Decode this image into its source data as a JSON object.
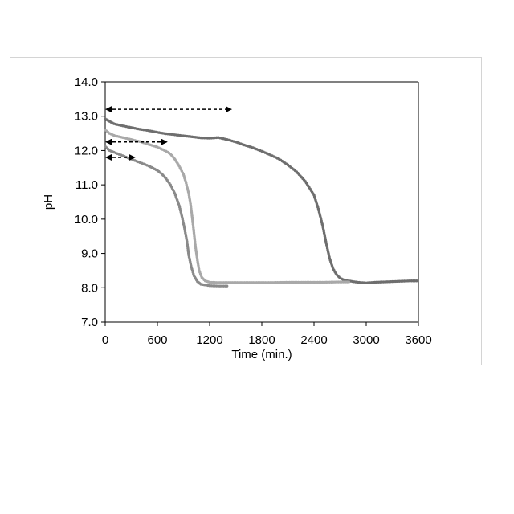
{
  "chart_data": {
    "type": "scatter",
    "title": "",
    "xlabel": "Time (min.)",
    "ylabel": "pH",
    "xlim": [
      0,
      3600
    ],
    "ylim": [
      7.0,
      14.0
    ],
    "x_ticks": [
      "0",
      "600",
      "1200",
      "1800",
      "2400",
      "3000",
      "3600"
    ],
    "y_ticks": [
      "7.0",
      "8.0",
      "9.0",
      "10.0",
      "11.0",
      "12.0",
      "13.0",
      "14.0"
    ],
    "grid": false,
    "legend": "none",
    "series": [
      {
        "color": "#6e6e6e",
        "points": [
          [
            0,
            12.92
          ],
          [
            100,
            12.78
          ],
          [
            200,
            12.72
          ],
          [
            300,
            12.67
          ],
          [
            400,
            12.62
          ],
          [
            500,
            12.58
          ],
          [
            600,
            12.53
          ],
          [
            700,
            12.49
          ],
          [
            800,
            12.46
          ],
          [
            900,
            12.43
          ],
          [
            1000,
            12.4
          ],
          [
            1100,
            12.37
          ],
          [
            1200,
            12.36
          ],
          [
            1300,
            12.38
          ],
          [
            1400,
            12.32
          ],
          [
            1500,
            12.25
          ],
          [
            1600,
            12.16
          ],
          [
            1700,
            12.08
          ],
          [
            1800,
            11.98
          ],
          [
            1900,
            11.87
          ],
          [
            2000,
            11.75
          ],
          [
            2100,
            11.58
          ],
          [
            2200,
            11.38
          ],
          [
            2300,
            11.1
          ],
          [
            2400,
            10.7
          ],
          [
            2450,
            10.3
          ],
          [
            2500,
            9.8
          ],
          [
            2540,
            9.3
          ],
          [
            2580,
            8.85
          ],
          [
            2620,
            8.55
          ],
          [
            2660,
            8.38
          ],
          [
            2700,
            8.28
          ],
          [
            2750,
            8.22
          ],
          [
            2800,
            8.2
          ],
          [
            2900,
            8.16
          ],
          [
            3000,
            8.14
          ],
          [
            3100,
            8.16
          ],
          [
            3200,
            8.17
          ],
          [
            3300,
            8.18
          ],
          [
            3400,
            8.19
          ],
          [
            3500,
            8.2
          ],
          [
            3580,
            8.2
          ]
        ]
      },
      {
        "color": "#a9a9a9",
        "points": [
          [
            0,
            12.6
          ],
          [
            50,
            12.5
          ],
          [
            100,
            12.44
          ],
          [
            200,
            12.38
          ],
          [
            300,
            12.32
          ],
          [
            400,
            12.26
          ],
          [
            500,
            12.18
          ],
          [
            600,
            12.1
          ],
          [
            700,
            11.98
          ],
          [
            750,
            11.9
          ],
          [
            800,
            11.75
          ],
          [
            850,
            11.55
          ],
          [
            900,
            11.3
          ],
          [
            930,
            11.05
          ],
          [
            960,
            10.75
          ],
          [
            980,
            10.45
          ],
          [
            1000,
            10.05
          ],
          [
            1020,
            9.6
          ],
          [
            1040,
            9.15
          ],
          [
            1060,
            8.8
          ],
          [
            1080,
            8.5
          ],
          [
            1110,
            8.3
          ],
          [
            1150,
            8.2
          ],
          [
            1200,
            8.16
          ],
          [
            1300,
            8.15
          ],
          [
            1500,
            8.15
          ],
          [
            1700,
            8.15
          ],
          [
            1900,
            8.15
          ],
          [
            2100,
            8.16
          ],
          [
            2300,
            8.16
          ],
          [
            2500,
            8.16
          ],
          [
            2700,
            8.17
          ],
          [
            2800,
            8.17
          ]
        ]
      },
      {
        "color": "#8a8a8a",
        "points": [
          [
            0,
            12.12
          ],
          [
            50,
            12.0
          ],
          [
            100,
            11.95
          ],
          [
            200,
            11.85
          ],
          [
            300,
            11.75
          ],
          [
            400,
            11.65
          ],
          [
            500,
            11.55
          ],
          [
            600,
            11.42
          ],
          [
            650,
            11.32
          ],
          [
            700,
            11.18
          ],
          [
            750,
            11.0
          ],
          [
            800,
            10.75
          ],
          [
            850,
            10.4
          ],
          [
            880,
            10.1
          ],
          [
            910,
            9.75
          ],
          [
            940,
            9.35
          ],
          [
            960,
            8.95
          ],
          [
            990,
            8.6
          ],
          [
            1020,
            8.35
          ],
          [
            1060,
            8.18
          ],
          [
            1100,
            8.1
          ],
          [
            1200,
            8.06
          ],
          [
            1300,
            8.05
          ],
          [
            1400,
            8.05
          ]
        ]
      }
    ],
    "annotations": [
      {
        "type": "double-arrow",
        "style": "dashed",
        "y": 13.2,
        "x_from": 0,
        "x_to": 1440
      },
      {
        "type": "double-arrow",
        "style": "dashed",
        "y": 12.25,
        "x_from": 0,
        "x_to": 700
      },
      {
        "type": "double-arrow",
        "style": "dashed",
        "y": 11.8,
        "x_from": 0,
        "x_to": 330
      }
    ]
  }
}
